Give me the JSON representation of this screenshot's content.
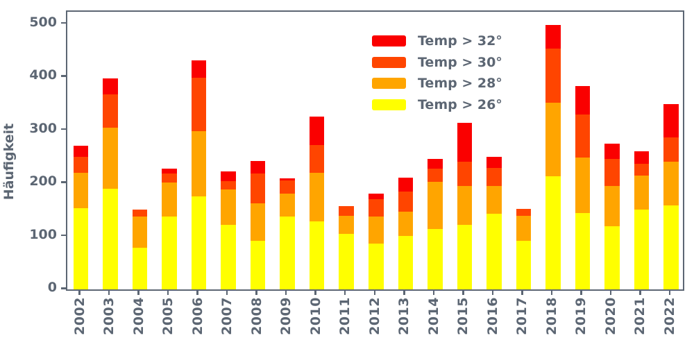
{
  "axis_color": "#5c6673",
  "chart_data": {
    "type": "bar",
    "stacked": true,
    "orientation": "vertical",
    "title": "",
    "xlabel": "",
    "ylabel": "Häufigkeit",
    "grid": false,
    "legend_position": "upper center",
    "legend_frame": false,
    "ylim": [
      0,
      523
    ],
    "yticks": [
      0,
      100,
      200,
      300,
      400,
      500
    ],
    "categories": [
      "2002",
      "2003",
      "2004",
      "2005",
      "2006",
      "2007",
      "2008",
      "2009",
      "2010",
      "2011",
      "2012",
      "2013",
      "2014",
      "2015",
      "2016",
      "2017",
      "2018",
      "2019",
      "2020",
      "2021",
      "2022"
    ],
    "series": [
      {
        "name": "Temp > 26°",
        "color": "#ffff00",
        "values": [
          153,
          190,
          79,
          137,
          175,
          122,
          92,
          137,
          128,
          104,
          86,
          101,
          114,
          121,
          142,
          91,
          213,
          144,
          119,
          151,
          158
        ]
      },
      {
        "name": "Temp > 28°",
        "color": "#ffa500",
        "values": [
          67,
          114,
          58,
          64,
          123,
          66,
          70,
          43,
          91,
          34,
          51,
          46,
          88,
          74,
          53,
          47,
          139,
          105,
          76,
          63,
          82
        ]
      },
      {
        "name": "Temp > 30°",
        "color": "#ff4500",
        "values": [
          30,
          63,
          13,
          17,
          101,
          16,
          56,
          25,
          53,
          19,
          33,
          38,
          25,
          46,
          34,
          14,
          101,
          81,
          51,
          22,
          46
        ]
      },
      {
        "name": "Temp > 32°",
        "color": "#fa0000",
        "values": [
          20,
          30,
          0,
          9,
          33,
          18,
          24,
          4,
          53,
          0,
          10,
          26,
          19,
          73,
          21,
          0,
          45,
          53,
          29,
          24,
          63
        ]
      }
    ],
    "bar_totals": [
      270,
      397,
      150,
      227,
      432,
      222,
      242,
      209,
      325,
      157,
      180,
      211,
      246,
      314,
      250,
      152,
      498,
      383,
      275,
      260,
      349
    ],
    "legend_order": [
      "Temp > 32°",
      "Temp > 30°",
      "Temp > 28°",
      "Temp > 26°"
    ]
  }
}
